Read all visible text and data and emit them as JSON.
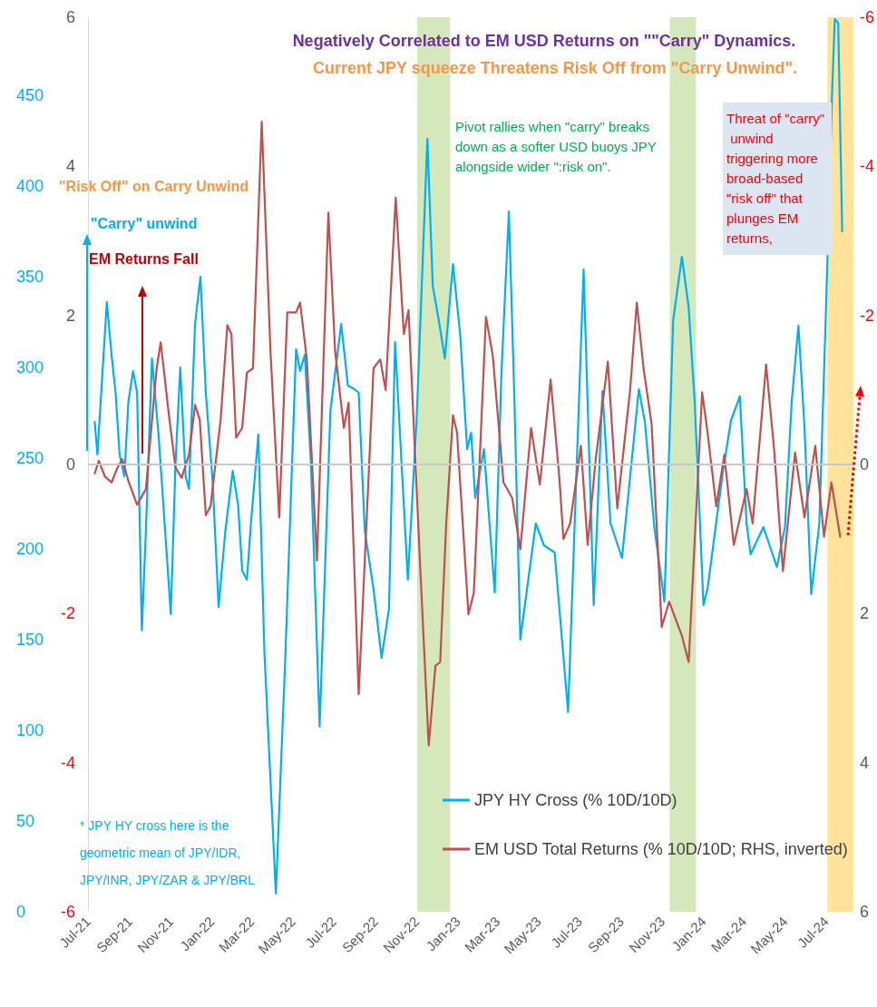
{
  "chart_data": {
    "type": "line",
    "title": "Negatively Correlated to EM USD Returns on \"\"Carry\" Dynamics.",
    "subtitle": "Current JPY squeeze Threatens Risk Off from \"Carry Unwind\".",
    "xlim": [
      "2021-07-01",
      "2024-08-12"
    ],
    "xticks": [
      {
        "value": "2021-07-01",
        "label": "Jul-21"
      },
      {
        "value": "2021-09-01",
        "label": "Sep-21"
      },
      {
        "value": "2021-11-01",
        "label": "Nov-21"
      },
      {
        "value": "2022-01-01",
        "label": "Jan-22"
      },
      {
        "value": "2022-03-01",
        "label": "Mar-22"
      },
      {
        "value": "2022-05-01",
        "label": "May-22"
      },
      {
        "value": "2022-07-01",
        "label": "Jul-22"
      },
      {
        "value": "2022-09-01",
        "label": "Sep-22"
      },
      {
        "value": "2022-11-01",
        "label": "Nov-22"
      },
      {
        "value": "2023-01-01",
        "label": "Jan-23"
      },
      {
        "value": "2023-03-01",
        "label": "Mar-23"
      },
      {
        "value": "2023-05-01",
        "label": "May-23"
      },
      {
        "value": "2023-07-01",
        "label": "Jul-23"
      },
      {
        "value": "2023-09-01",
        "label": "Sep-23"
      },
      {
        "value": "2023-11-01",
        "label": "Nov-23"
      },
      {
        "value": "2024-01-01",
        "label": "Jan-24"
      },
      {
        "value": "2024-03-01",
        "label": "Mar-24"
      },
      {
        "value": "2024-05-01",
        "label": "May-24"
      },
      {
        "value": "2024-07-01",
        "label": "Jul-24"
      }
    ],
    "ylim": [
      0,
      493
    ],
    "yticks": [
      0,
      50,
      100,
      150,
      200,
      250,
      300,
      350,
      400,
      450
    ],
    "y2lim": [
      6,
      -6
    ],
    "y2ticks": [
      -6,
      -4,
      -2,
      0,
      2,
      4,
      6
    ],
    "y3lim": [
      -6,
      6
    ],
    "y3ticks": [
      -6,
      -4,
      -2,
      0,
      2,
      4,
      6
    ],
    "legend": "bottom right",
    "marker": "none",
    "series": [
      {
        "name": "JPY HY Cross (% 10D/10D)",
        "color": "#00b0f0",
        "x": [
          "2021-07-11",
          "2021-07-15",
          "2021-07-29",
          "2021-08-05",
          "2021-08-11",
          "2021-08-17",
          "2021-08-24",
          "2021-08-30",
          "2021-09-06",
          "2021-09-12",
          "2021-09-19",
          "2021-09-25",
          "2021-10-04",
          "2021-10-14",
          "2021-11-01",
          "2021-11-08",
          "2021-11-15",
          "2021-11-23",
          "2021-11-28",
          "2021-12-07",
          "2021-12-15",
          "2021-12-23",
          "2022-01-02",
          "2022-01-11",
          "2022-01-21",
          "2022-02-01",
          "2022-02-09",
          "2022-02-15",
          "2022-02-22",
          "2022-02-28",
          "2022-03-11",
          "2022-03-20",
          "2022-04-06",
          "2022-04-20",
          "2022-05-06",
          "2022-05-12",
          "2022-05-19",
          "2022-05-28",
          "2022-06-10",
          "2022-06-26",
          "2022-07-12",
          "2022-07-22",
          "2022-08-01",
          "2022-08-07",
          "2022-08-16",
          "2022-08-29",
          "2022-09-10",
          "2022-09-21",
          "2022-09-30",
          "2022-10-19",
          "2022-11-01",
          "2022-11-17",
          "2022-11-25",
          "2022-12-03",
          "2022-12-13",
          "2022-12-25",
          "2023-01-05",
          "2023-01-15",
          "2023-01-21",
          "2023-01-27",
          "2023-02-09",
          "2023-02-25",
          "2023-03-07",
          "2023-03-18",
          "2023-03-26",
          "2023-04-04",
          "2023-04-14",
          "2023-04-27",
          "2023-05-09",
          "2023-05-25",
          "2023-06-14",
          "2023-06-26",
          "2023-07-07",
          "2023-07-22",
          "2023-08-04",
          "2023-08-16",
          "2023-09-02",
          "2023-09-27",
          "2023-10-06",
          "2023-10-20",
          "2023-11-04",
          "2023-11-17",
          "2023-11-30",
          "2023-12-10",
          "2023-12-19",
          "2024-01-01",
          "2024-01-07",
          "2024-01-30",
          "2024-02-11",
          "2024-02-24",
          "2024-03-05",
          "2024-03-11",
          "2024-03-30",
          "2024-04-19",
          "2024-05-01",
          "2024-05-11",
          "2024-05-21",
          "2024-05-30",
          "2024-06-09",
          "2024-06-21",
          "2024-07-01",
          "2024-07-10",
          "2024-07-14",
          "2024-07-19",
          "2024-07-25"
        ],
        "values": [
          270,
          252,
          336,
          307,
          286,
          252,
          240,
          281,
          298,
          286,
          155,
          210,
          305,
          262,
          164,
          247,
          300,
          240,
          233,
          324,
          350,
          286,
          238,
          168,
          210,
          243,
          224,
          188,
          183,
          214,
          263,
          143,
          10,
          140,
          310,
          298,
          307,
          248,
          102,
          276,
          324,
          290,
          288,
          286,
          210,
          178,
          140,
          167,
          314,
          183,
          271,
          426,
          345,
          328,
          305,
          357,
          317,
          255,
          264,
          228,
          255,
          176,
          297,
          386,
          286,
          150,
          178,
          214,
          202,
          198,
          110,
          238,
          354,
          169,
          287,
          214,
          195,
          288,
          270,
          212,
          171,
          326,
          361,
          333,
          281,
          169,
          178,
          243,
          271,
          284,
          214,
          197,
          212,
          190,
          212,
          281,
          323,
          267,
          175,
          214,
          333,
          452,
          492,
          490,
          375
        ]
      },
      {
        "name": "EM USD Total Returns (% 10D/10D; RHS, inverted)",
        "color": "#c0504d",
        "axis": "y2",
        "x": [
          "2021-07-11",
          "2021-07-17",
          "2021-07-26",
          "2021-08-05",
          "2021-08-14",
          "2021-08-21",
          "2021-08-30",
          "2021-09-12",
          "2021-09-25",
          "2021-10-11",
          "2021-10-17",
          "2021-10-30",
          "2021-11-08",
          "2021-11-17",
          "2021-11-28",
          "2021-12-07",
          "2021-12-14",
          "2021-12-23",
          "2021-12-30",
          "2022-01-14",
          "2022-01-24",
          "2022-01-30",
          "2022-02-06",
          "2022-02-15",
          "2022-02-22",
          "2022-03-03",
          "2022-03-16",
          "2022-03-29",
          "2022-04-11",
          "2022-04-23",
          "2022-05-06",
          "2022-05-12",
          "2022-05-22",
          "2022-06-06",
          "2022-06-23",
          "2022-07-03",
          "2022-07-16",
          "2022-07-23",
          "2022-08-07",
          "2022-08-29",
          "2022-09-08",
          "2022-09-16",
          "2022-10-01",
          "2022-10-13",
          "2022-10-20",
          "2022-11-06",
          "2022-11-19",
          "2022-11-29",
          "2022-12-06",
          "2022-12-15",
          "2022-12-25",
          "2022-12-31",
          "2023-01-17",
          "2023-01-25",
          "2023-02-12",
          "2023-02-22",
          "2023-03-10",
          "2023-03-23",
          "2023-04-04",
          "2023-04-20",
          "2023-05-03",
          "2023-05-19",
          "2023-06-01",
          "2023-06-07",
          "2023-06-17",
          "2023-07-03",
          "2023-07-13",
          "2023-07-25",
          "2023-08-12",
          "2023-08-26",
          "2023-09-14",
          "2023-09-24",
          "2023-10-04",
          "2023-10-16",
          "2023-10-31",
          "2023-11-11",
          "2023-11-30",
          "2023-12-10",
          "2023-12-19",
          "2023-12-30",
          "2024-01-07",
          "2024-01-20",
          "2024-02-01",
          "2024-02-15",
          "2024-03-05",
          "2024-03-14",
          "2024-04-03",
          "2024-04-15",
          "2024-04-28",
          "2024-05-16",
          "2024-05-30",
          "2024-06-15",
          "2024-06-28",
          "2024-07-09",
          "2024-07-22"
        ],
        "values": [
          0.12,
          -0.05,
          0.16,
          0.24,
          0.04,
          -0.07,
          0.22,
          0.54,
          0.33,
          -1.29,
          -1.64,
          -0.6,
          0.04,
          0.18,
          -0.13,
          -0.8,
          -0.6,
          0.68,
          0.56,
          -0.6,
          -1.87,
          -1.75,
          -0.36,
          -0.49,
          -1.23,
          -1.29,
          -4.6,
          -1.52,
          0.71,
          -2.04,
          -2.04,
          -2.17,
          -1.41,
          1.29,
          -3.38,
          -1.52,
          -0.49,
          -0.83,
          3.08,
          -1.29,
          -1.41,
          -1.0,
          -3.58,
          -1.75,
          -2.07,
          1.31,
          3.77,
          2.7,
          2.65,
          0.79,
          -0.66,
          -0.43,
          2.01,
          1.72,
          -1.98,
          -1.47,
          0.24,
          0.45,
          1.14,
          -0.49,
          0.27,
          -1.14,
          0.18,
          1.0,
          0.79,
          -0.25,
          1.08,
          -0.07,
          -1.38,
          0.59,
          -1.0,
          -2.17,
          -1.29,
          -0.54,
          2.18,
          1.84,
          2.3,
          2.65,
          1.02,
          -0.97,
          -0.43,
          0.56,
          -0.13,
          1.08,
          0.33,
          0.79,
          -1.34,
          -0.19,
          1.43,
          -0.16,
          0.71,
          -0.25,
          0.97,
          0.24,
          0.97
        ]
      }
    ],
    "bands": [
      {
        "axis": "x",
        "from": "2022-11-02",
        "to": "2022-12-21",
        "color": "#cfe6b4"
      },
      {
        "axis": "x",
        "from": "2023-11-12",
        "to": "2023-12-21",
        "color": "#cfe6b4"
      },
      {
        "axis": "x",
        "from": "2024-07-03",
        "to": "2024-08-11",
        "color": "#ffe08f"
      }
    ],
    "ref_lines": [
      {
        "axis": "y2",
        "value": 0,
        "color": "#c8c8c8"
      }
    ],
    "annotations": [
      "\"Risk Off\" on Carry Unwind",
      "\"Carry\" unwind",
      "EM Returns Fall",
      "Pivot rallies when \"carry\" breaks down as a softer USD buoys JPY alongside wider \":risk on\".",
      "Threat of \"carry\" unwind triggering more broad-based \"risk off\" that plunges EM returns,",
      "* JPY HY cross here is the geometric mean of JPY/IDR, JPY/INR, JPY/ZAR & JPY/BRL"
    ]
  }
}
